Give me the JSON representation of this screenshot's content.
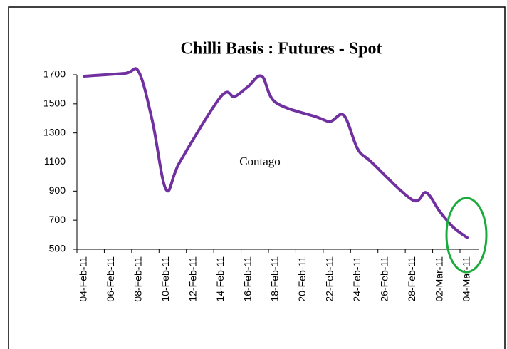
{
  "chart_data": {
    "type": "line",
    "title": "Chilli Basis : Futures - Spot",
    "annotations": [
      "Contago"
    ],
    "x": [
      "04-Feb-11",
      "07-Feb-11",
      "08-Feb-11",
      "09-Feb-11",
      "10-Feb-11",
      "11-Feb-11",
      "14-Feb-11",
      "15-Feb-11",
      "16-Feb-11",
      "17-Feb-11",
      "18-Feb-11",
      "21-Feb-11",
      "22-Feb-11",
      "23-Feb-11",
      "24-Feb-11",
      "25-Feb-11",
      "28-Feb-11",
      "01-Mar-11",
      "02-Mar-11",
      "03-Mar-11",
      "04-Mar-11"
    ],
    "series": [
      {
        "name": "Basis",
        "color": "#7030a0",
        "values": [
          1690,
          1710,
          1720,
          1380,
          910,
          1100,
          1550,
          1550,
          1620,
          1690,
          1510,
          1410,
          1380,
          1420,
          1190,
          1100,
          840,
          890,
          760,
          650,
          580
        ]
      }
    ],
    "xlim": [
      "04-Feb-11",
      "04-Mar-11"
    ],
    "xticks": [
      "04-Feb-11",
      "06-Feb-11",
      "08-Feb-11",
      "10-Feb-11",
      "12-Feb-11",
      "14-Feb-11",
      "16-Feb-11",
      "18-Feb-11",
      "20-Feb-11",
      "22-Feb-11",
      "24-Feb-11",
      "26-Feb-11",
      "28-Feb-11",
      "02-Mar-11",
      "04-Mar-11"
    ],
    "ylim": [
      500,
      1700
    ],
    "yticks": [
      500,
      700,
      900,
      1100,
      1300,
      1500,
      1700
    ],
    "grid": false
  }
}
